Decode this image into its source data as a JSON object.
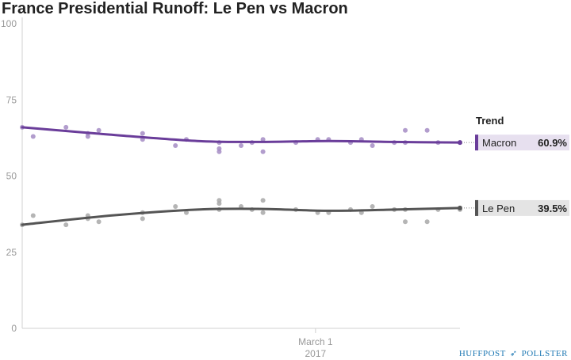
{
  "chart_data": {
    "type": "scatter",
    "title": "France Presidential Runoff: Le Pen vs Macron",
    "ylim": [
      0,
      100
    ],
    "yticks": [
      0,
      25,
      50,
      75,
      100
    ],
    "xlim": [
      0,
      100
    ],
    "xtick_label_lines": [
      "March 1",
      "2017"
    ],
    "xtick_position": 67,
    "grid": false,
    "trend_heading": "Trend",
    "series": [
      {
        "name": "Macron",
        "color": "#6a3d9a",
        "point_color": "#a58cc4",
        "trend_label": "60.9%",
        "trend": [
          [
            0,
            66
          ],
          [
            20,
            63.6
          ],
          [
            40,
            61.5
          ],
          [
            55,
            61.2
          ],
          [
            70,
            61.5
          ],
          [
            85,
            61.2
          ],
          [
            100,
            61
          ]
        ],
        "points": [
          [
            0,
            66
          ],
          [
            2.5,
            63
          ],
          [
            10,
            66
          ],
          [
            15,
            63
          ],
          [
            15,
            64
          ],
          [
            17.5,
            65
          ],
          [
            27.5,
            62
          ],
          [
            27.5,
            64
          ],
          [
            35,
            60
          ],
          [
            37.5,
            62
          ],
          [
            45,
            61
          ],
          [
            45,
            59
          ],
          [
            45,
            58
          ],
          [
            50,
            60
          ],
          [
            52.5,
            61
          ],
          [
            55,
            58
          ],
          [
            55,
            62
          ],
          [
            62.5,
            61
          ],
          [
            67.5,
            62
          ],
          [
            70,
            62
          ],
          [
            75,
            61
          ],
          [
            77.5,
            62
          ],
          [
            80,
            60
          ],
          [
            85,
            61
          ],
          [
            87.5,
            65
          ],
          [
            87.5,
            61
          ],
          [
            92.5,
            65
          ],
          [
            95,
            61
          ],
          [
            100,
            61
          ]
        ]
      },
      {
        "name": "Le Pen",
        "color": "#555555",
        "point_color": "#a8a8a8",
        "trend_label": "39.5%",
        "trend": [
          [
            0,
            34
          ],
          [
            20,
            37
          ],
          [
            40,
            39
          ],
          [
            55,
            39.2
          ],
          [
            70,
            38.6
          ],
          [
            85,
            39
          ],
          [
            100,
            39.5
          ]
        ],
        "points": [
          [
            0,
            34
          ],
          [
            2.5,
            37
          ],
          [
            10,
            34
          ],
          [
            15,
            37
          ],
          [
            15,
            36
          ],
          [
            17.5,
            35
          ],
          [
            27.5,
            38
          ],
          [
            27.5,
            36
          ],
          [
            35,
            40
          ],
          [
            37.5,
            38
          ],
          [
            45,
            39
          ],
          [
            45,
            41
          ],
          [
            45,
            42
          ],
          [
            50,
            40
          ],
          [
            52.5,
            39
          ],
          [
            55,
            42
          ],
          [
            55,
            38
          ],
          [
            62.5,
            39
          ],
          [
            67.5,
            38
          ],
          [
            70,
            38
          ],
          [
            75,
            39
          ],
          [
            77.5,
            38
          ],
          [
            80,
            40
          ],
          [
            85,
            39
          ],
          [
            87.5,
            35
          ],
          [
            87.5,
            39
          ],
          [
            92.5,
            35
          ],
          [
            95,
            39
          ],
          [
            100,
            39
          ]
        ]
      }
    ]
  },
  "footer": {
    "brand_left": "HUFFPOST",
    "brand_right": "POLLSTER",
    "arrow_icon": "paper-plane-icon",
    "brand_color": "#1f79b4"
  }
}
